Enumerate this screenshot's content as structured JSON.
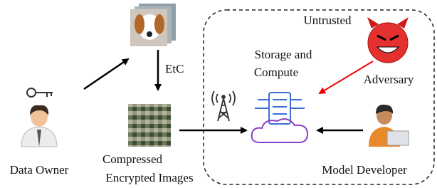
{
  "region": {
    "label": "Untrusted"
  },
  "nodes": [
    {
      "id": "data-owner",
      "label": "Data Owner"
    },
    {
      "id": "images",
      "lines": [
        "Compressed",
        "Encrypted Images"
      ]
    },
    {
      "id": "storage",
      "lines": [
        "Storage and",
        "Compute"
      ]
    },
    {
      "id": "adversary",
      "label": "Adversary"
    },
    {
      "id": "developer",
      "label": "Model Developer"
    }
  ],
  "edges": [
    {
      "label": "EtC"
    }
  ]
}
